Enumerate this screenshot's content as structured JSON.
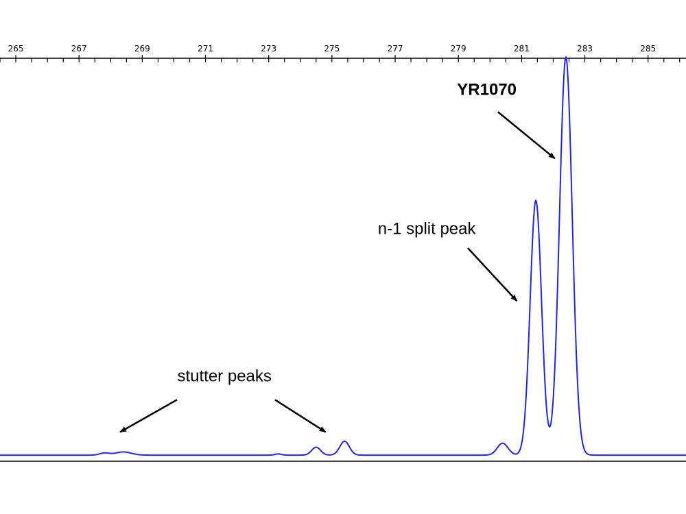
{
  "chart_data": {
    "type": "line",
    "title": "",
    "xlabel": "",
    "ylabel": "",
    "xlim": [
      264.5,
      286.2
    ],
    "ylim": [
      0,
      100
    ],
    "grid": false,
    "legend": "none",
    "x_ticks": [
      265,
      267,
      269,
      271,
      273,
      275,
      277,
      279,
      281,
      283,
      285
    ],
    "x_tick_labels": [
      "265",
      "267",
      "269",
      "271",
      "273",
      "275",
      "277",
      "279",
      "281",
      "283",
      "285"
    ],
    "x_minor_step": 0.5,
    "series": [
      {
        "color": "#2323f0",
        "baseline": 0.5,
        "peaks": [
          {
            "center": 267.8,
            "height": 0.5,
            "width": 0.15
          },
          {
            "center": 268.4,
            "height": 0.8,
            "width": 0.25
          },
          {
            "center": 273.3,
            "height": 0.3,
            "width": 0.1
          },
          {
            "center": 274.5,
            "height": 2.0,
            "width": 0.14
          },
          {
            "center": 275.4,
            "height": 3.5,
            "width": 0.15
          },
          {
            "center": 280.4,
            "height": 3.0,
            "width": 0.17
          },
          {
            "center": 281.45,
            "height": 64.0,
            "width": 0.18
          },
          {
            "center": 282.4,
            "height": 100.0,
            "width": 0.2
          }
        ]
      }
    ],
    "annotations": [
      {
        "text": "YR1070",
        "bold": true,
        "text_x": 279.9,
        "text_y": 91.0,
        "arrow_from_x": 280.25,
        "arrow_from_y": 86.7,
        "arrow_to_x": 282.05,
        "arrow_to_y": 75.0
      },
      {
        "text": "n-1 split peak",
        "bold": false,
        "text_x": 278.0,
        "text_y": 56.0,
        "arrow_from_x": 279.3,
        "arrow_from_y": 52.5,
        "arrow_to_x": 280.85,
        "arrow_to_y": 39.2
      },
      {
        "text": "stutter peaks",
        "bold": false,
        "text_x": 271.6,
        "text_y": 19.0,
        "arrow_from_x": 270.1,
        "arrow_from_y": 14.4,
        "arrow_to_x": 268.3,
        "arrow_to_y": 6.3
      },
      {
        "text": "",
        "bold": false,
        "text_x": 0,
        "text_y": 0,
        "arrow_from_x": 273.2,
        "arrow_from_y": 14.4,
        "arrow_to_x": 274.8,
        "arrow_to_y": 6.3
      }
    ]
  }
}
